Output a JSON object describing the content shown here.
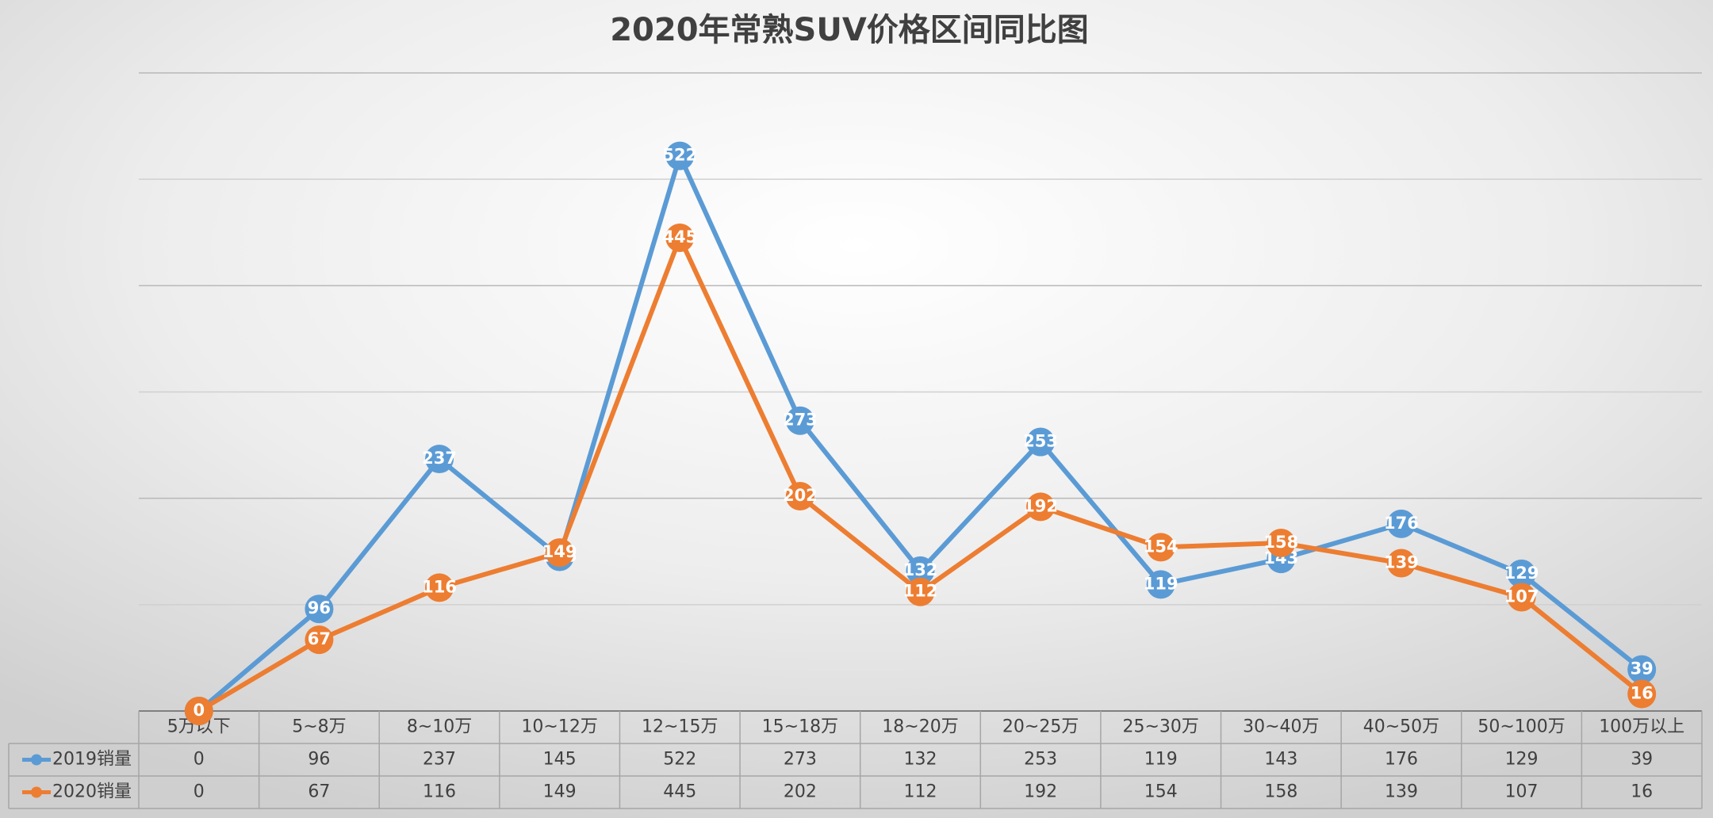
{
  "chart_data": {
    "type": "line",
    "title": "2020年常熟SUV价格区间同比图",
    "categories": [
      "5万以下",
      "5~8万",
      "8~10万",
      "10~12万",
      "12~15万",
      "15~18万",
      "18~20万",
      "20~25万",
      "25~30万",
      "30~40万",
      "40~50万",
      "50~100万",
      "100万以上"
    ],
    "series": [
      {
        "name": "2019销量",
        "color": "#5b9bd5",
        "values": [
          0,
          96,
          237,
          145,
          522,
          273,
          132,
          253,
          119,
          143,
          176,
          129,
          39
        ]
      },
      {
        "name": "2020销量",
        "color": "#ed7d31",
        "values": [
          0,
          67,
          116,
          149,
          445,
          202,
          112,
          192,
          154,
          158,
          139,
          107,
          16
        ]
      }
    ],
    "ylim": [
      0,
      600
    ],
    "yticks": [
      0,
      100,
      200,
      300,
      400,
      500,
      600
    ],
    "grid": true
  }
}
